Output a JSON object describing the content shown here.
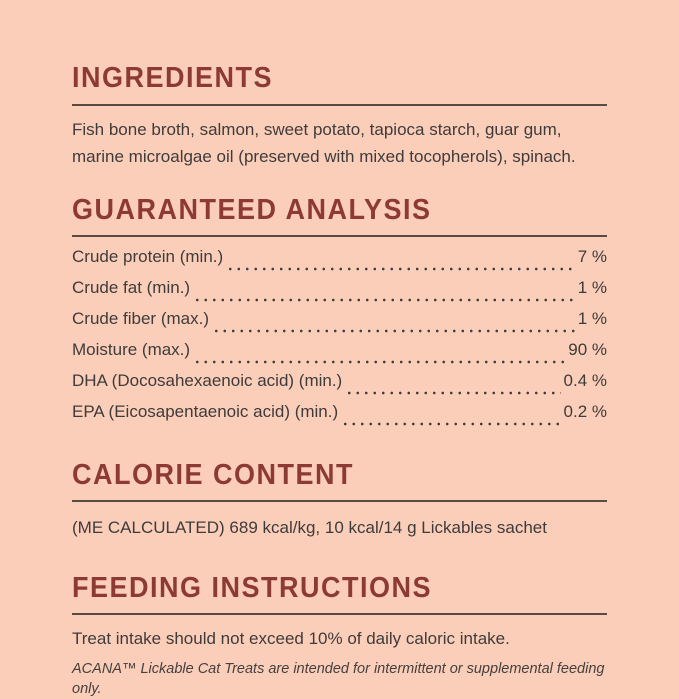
{
  "page": {
    "background_color": "#fbceba",
    "heading_color": "#8c3a33",
    "text_color": "#3f3b3a",
    "rule_color": "#5a4a42"
  },
  "ingredients": {
    "title": "INGREDIENTS",
    "body": "Fish bone broth, salmon, sweet potato, tapioca starch, guar gum, marine microalgae oil (preserved with mixed tocopherols), spinach."
  },
  "guaranteed_analysis": {
    "title": "GUARANTEED ANALYSIS",
    "rows": [
      {
        "label": "Crude protein (min.)",
        "value": "7 %"
      },
      {
        "label": "Crude fat (min.)",
        "value": "1 %"
      },
      {
        "label": "Crude fiber (max.)",
        "value": "1 %"
      },
      {
        "label": "Moisture (max.)",
        "value": "90 %"
      },
      {
        "label": "DHA (Docosahexaenoic acid) (min.)",
        "value": "0.4 %"
      },
      {
        "label": "EPA (Eicosapentaenoic acid) (min.)",
        "value": "0.2 %"
      }
    ]
  },
  "calorie_content": {
    "title": "CALORIE CONTENT",
    "body": "(ME CALCULATED) 689 kcal/kg, 10 kcal/14 g Lickables sachet"
  },
  "feeding_instructions": {
    "title": "FEEDING INSTRUCTIONS",
    "body": "Treat intake should not exceed 10% of daily caloric intake.",
    "note": "ACANA™ Lickable Cat Treats are intended for intermittent or supplemental feeding only."
  }
}
